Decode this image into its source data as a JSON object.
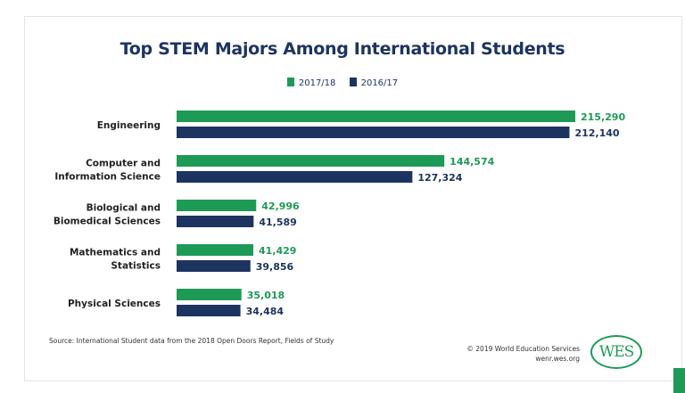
{
  "chart_data": {
    "type": "bar",
    "orientation": "horizontal",
    "title": "Top STEM Majors Among International Students",
    "categories": [
      [
        "Engineering"
      ],
      [
        "Computer and",
        "Information Science"
      ],
      [
        "Biological and",
        "Biomedical Sciences"
      ],
      [
        "Mathematics and",
        "Statistics"
      ],
      [
        "Physical Sciences"
      ]
    ],
    "series": [
      {
        "name": "2017/18",
        "color": "#1e9a57",
        "values": [
          215290,
          144574,
          42996,
          41429,
          35018
        ],
        "labels": [
          "215,290",
          "144,574",
          "42,996",
          "41,429",
          "35,018"
        ]
      },
      {
        "name": "2016/17",
        "color": "#1d3461",
        "values": [
          212140,
          127324,
          41589,
          39856,
          34484
        ],
        "labels": [
          "212,140",
          "127,324",
          "41,589",
          "39,856",
          "34,484"
        ]
      }
    ],
    "legend_position": "top-center",
    "grid": false,
    "xlim": [
      0,
      215290
    ]
  },
  "footer": {
    "source": "Source: International Student data from the 2018 Open Doors Report, Fields of Study",
    "copyright": "© 2019 World Education Services",
    "site": "wenr.wes.org",
    "logo": "WES"
  }
}
